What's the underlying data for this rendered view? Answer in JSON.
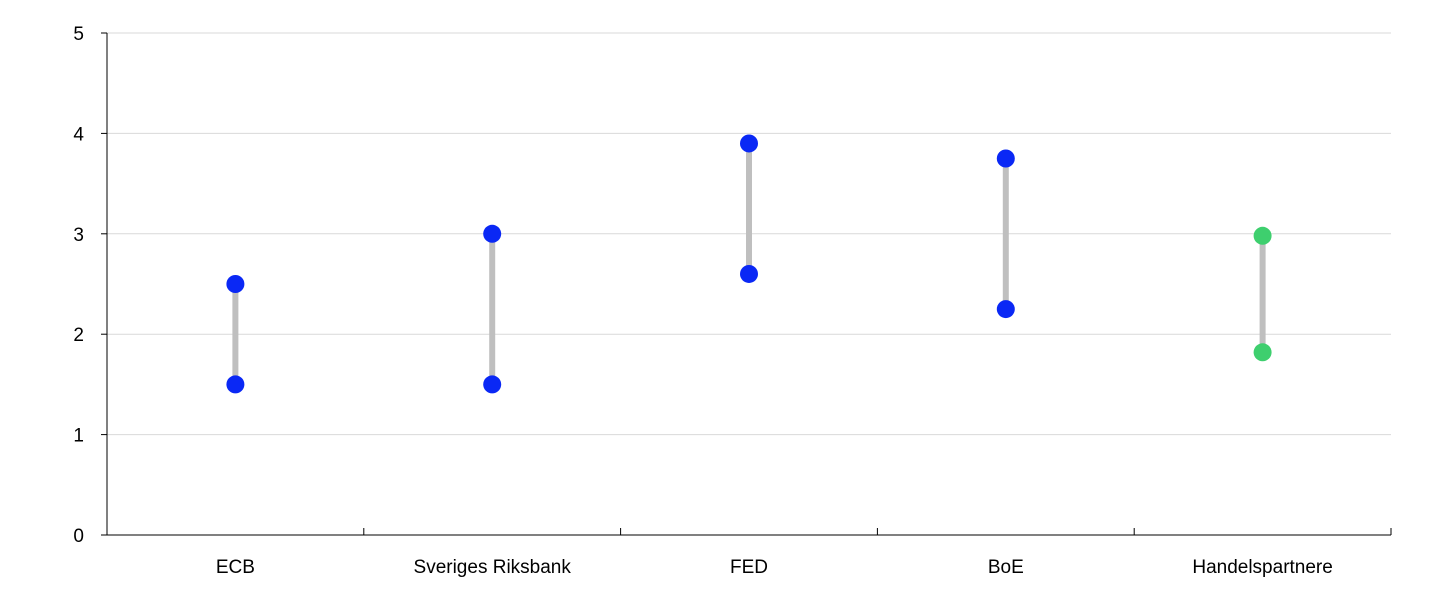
{
  "chart_data": {
    "type": "range-dot",
    "title": "",
    "xlabel": "",
    "ylabel": "",
    "ylim": [
      0,
      5
    ],
    "yticks": [
      "0",
      "1",
      "2",
      "3",
      "4",
      "5"
    ],
    "grid": true,
    "legend": "none",
    "categories": [
      "ECB",
      "Sveriges Riksbank",
      "FED",
      "BoE",
      "Handelspartnere"
    ],
    "series": [
      {
        "low": 1.5,
        "high": 2.5
      },
      {
        "low": 1.5,
        "high": 3.0
      },
      {
        "low": 2.6,
        "high": 3.9
      },
      {
        "low": 2.25,
        "high": 3.75
      },
      {
        "low": 1.82,
        "high": 2.98
      }
    ],
    "point_colors": [
      "#0a28f5",
      "#0a28f5",
      "#0a28f5",
      "#0a28f5",
      "#3ecf6e"
    ],
    "range_line_color": "#bfbfbf",
    "grid_color": "#d9d9d9",
    "axis_color": "#000000"
  }
}
